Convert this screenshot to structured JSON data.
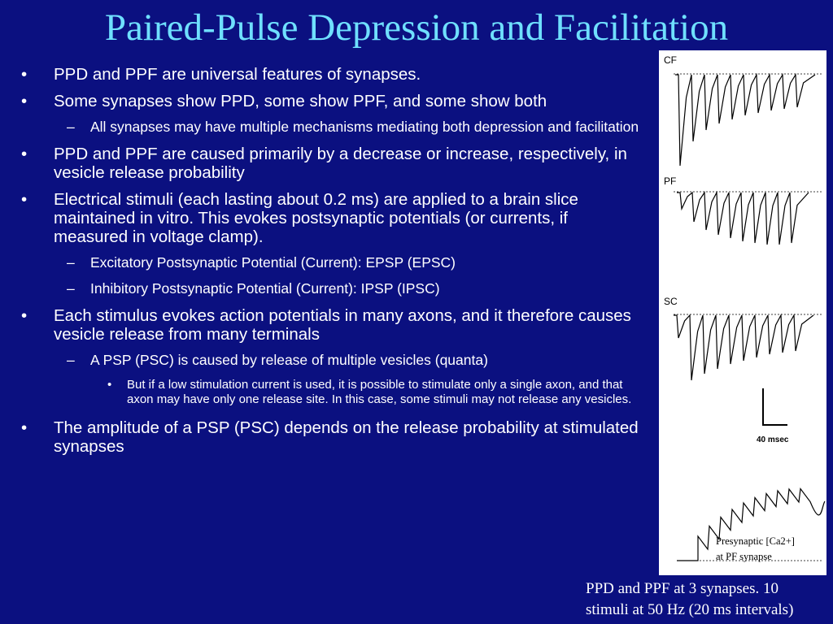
{
  "slide": {
    "title": "Paired-Pulse Depression and Facilitation",
    "bullets": [
      {
        "level": 1,
        "mark": "•",
        "text": "PPD and PPF are universal features of synapses."
      },
      {
        "level": 1,
        "mark": "•",
        "text": "Some synapses show PPD, some show PPF, and some show both"
      },
      {
        "level": 2,
        "mark": "–",
        "text": "All synapses may have multiple mechanisms mediating both depression and facilitation"
      },
      {
        "level": 1,
        "mark": "•",
        "text": "PPD and PPF are caused primarily by a decrease or increase, respectively, in vesicle release probability"
      },
      {
        "level": 1,
        "mark": "•",
        "text": "Electrical stimuli (each lasting about 0.2 ms) are applied to a brain slice maintained in vitro.  This evokes postsynaptic potentials (or currents, if measured in voltage clamp)."
      },
      {
        "level": 2,
        "mark": "–",
        "text": "Excitatory Postsynaptic Potential (Current): EPSP (EPSC)"
      },
      {
        "level": 2,
        "mark": "–",
        "text": "Inhibitory Postsynaptic Potential (Current): IPSP (IPSC)"
      },
      {
        "level": 1,
        "mark": "•",
        "text": "Each stimulus evokes action potentials in many axons, and it therefore causes vesicle release from many terminals"
      },
      {
        "level": 2,
        "mark": "–",
        "text": "A PSP (PSC) is caused by release of multiple vesicles (quanta)"
      },
      {
        "level": 3,
        "mark": "•",
        "text": "But if a low stimulation current is used, it is possible to stimulate only a single axon, and that axon may have only one release site.  In this case, some stimuli may not release any vesicles."
      },
      {
        "level": 1,
        "mark": "•",
        "text": "The amplitude of a PSP (PSC) depends on the release probability at stimulated synapses"
      }
    ]
  },
  "figure": {
    "trace_labels": [
      "CF",
      "PF",
      "SC"
    ],
    "scale_label": "40 msec",
    "ca_label_line1": "Presynaptic [Ca2+]",
    "ca_label_line2": "at PF synapse"
  },
  "caption": {
    "line1": "PPD and PPF at 3 synapses. 10",
    "line2": "stimuli at 50 Hz (20 ms intervals)"
  }
}
